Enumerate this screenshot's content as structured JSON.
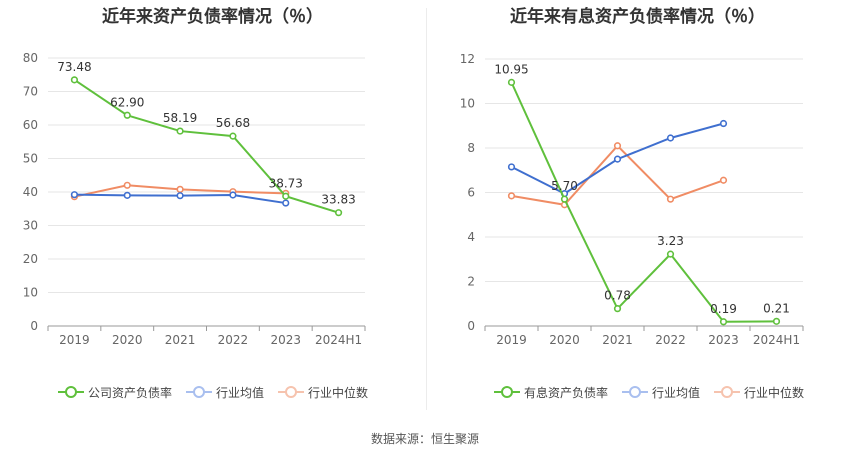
{
  "source_label": "数据来源：恒生聚源",
  "chart_data": [
    {
      "type": "line",
      "title": "近年来资产负债率情况（％）",
      "categories": [
        "2019",
        "2020",
        "2021",
        "2022",
        "2023",
        "2024H1"
      ],
      "ylim": [
        0,
        80
      ],
      "yticks": [
        0,
        10,
        20,
        30,
        40,
        50,
        60,
        70,
        80
      ],
      "grid": true,
      "legend_position": "bottom",
      "series": [
        {
          "name": "公司资产负债率",
          "color": "#5fc03c",
          "values": [
            73.48,
            62.9,
            58.19,
            56.68,
            38.73,
            33.83
          ],
          "labels": [
            "73.48",
            "62.90",
            "58.19",
            "56.68",
            "38.73",
            "33.83"
          ]
        },
        {
          "name": "行业均值",
          "color": "#3f6fcf",
          "values": [
            39.2,
            39.0,
            38.9,
            39.1,
            36.7,
            null
          ],
          "labels": []
        },
        {
          "name": "行业中位数",
          "color": "#f08c64",
          "values": [
            38.6,
            42.0,
            40.8,
            40.1,
            39.6,
            null
          ],
          "labels": []
        }
      ]
    },
    {
      "type": "line",
      "title": "近年来有息资产负债率情况（％）",
      "categories": [
        "2019",
        "2020",
        "2021",
        "2022",
        "2023",
        "2024H1"
      ],
      "ylim": [
        0,
        12
      ],
      "yticks": [
        0,
        2,
        4,
        6,
        8,
        10,
        12
      ],
      "grid": true,
      "legend_position": "bottom",
      "series": [
        {
          "name": "有息资产负债率",
          "color": "#5fc03c",
          "values": [
            10.95,
            5.7,
            0.78,
            3.23,
            0.19,
            0.21
          ],
          "labels": [
            "10.95",
            "5.70",
            "0.78",
            "3.23",
            "0.19",
            "0.21"
          ]
        },
        {
          "name": "行业均值",
          "color": "#3f6fcf",
          "values": [
            7.15,
            5.95,
            7.5,
            8.45,
            9.1,
            null
          ],
          "labels": []
        },
        {
          "name": "行业中位数",
          "color": "#f08c64",
          "values": [
            5.85,
            5.45,
            8.1,
            5.7,
            6.55,
            null
          ],
          "labels": []
        }
      ]
    }
  ]
}
